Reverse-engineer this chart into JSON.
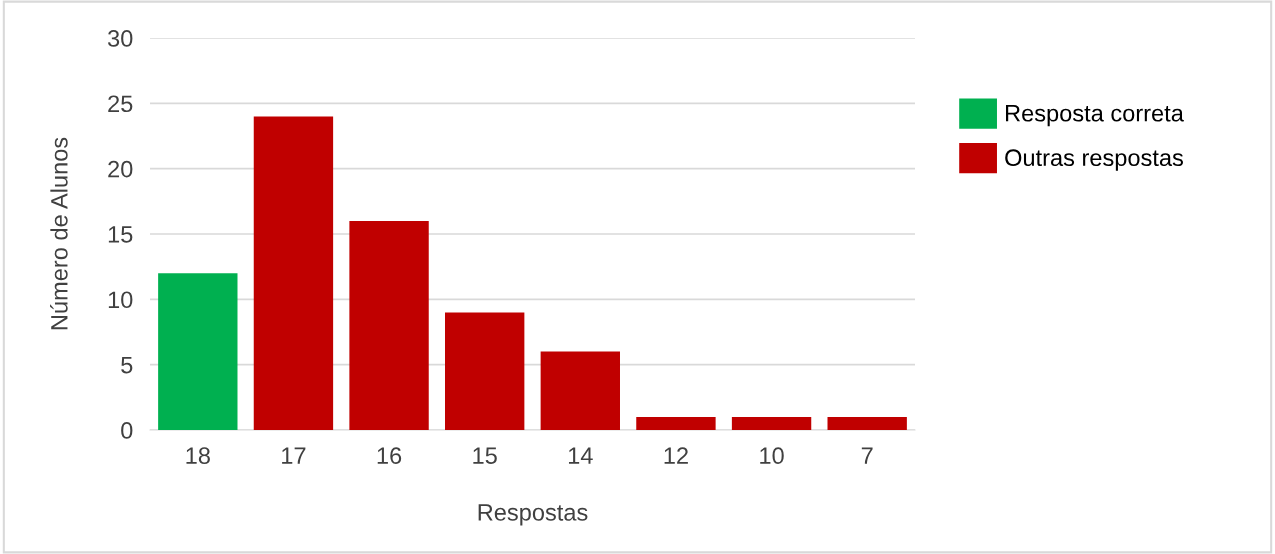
{
  "chart_data": {
    "type": "bar",
    "xlabel": "Respostas",
    "ylabel": "Número de Alunos",
    "categories": [
      "18",
      "17",
      "16",
      "15",
      "14",
      "12",
      "10",
      "7"
    ],
    "series": [
      {
        "name": "Resposta correta",
        "color": "#00b050",
        "values": [
          12,
          null,
          null,
          null,
          null,
          null,
          null,
          null
        ]
      },
      {
        "name": "Outras respostas",
        "color": "#c00000",
        "values": [
          null,
          24,
          16,
          9,
          6,
          1,
          1,
          1
        ]
      }
    ],
    "ylim": [
      0,
      30
    ],
    "yticks": [
      0,
      5,
      10,
      15,
      20,
      25,
      30
    ],
    "grid": "y",
    "legend": "top right"
  }
}
